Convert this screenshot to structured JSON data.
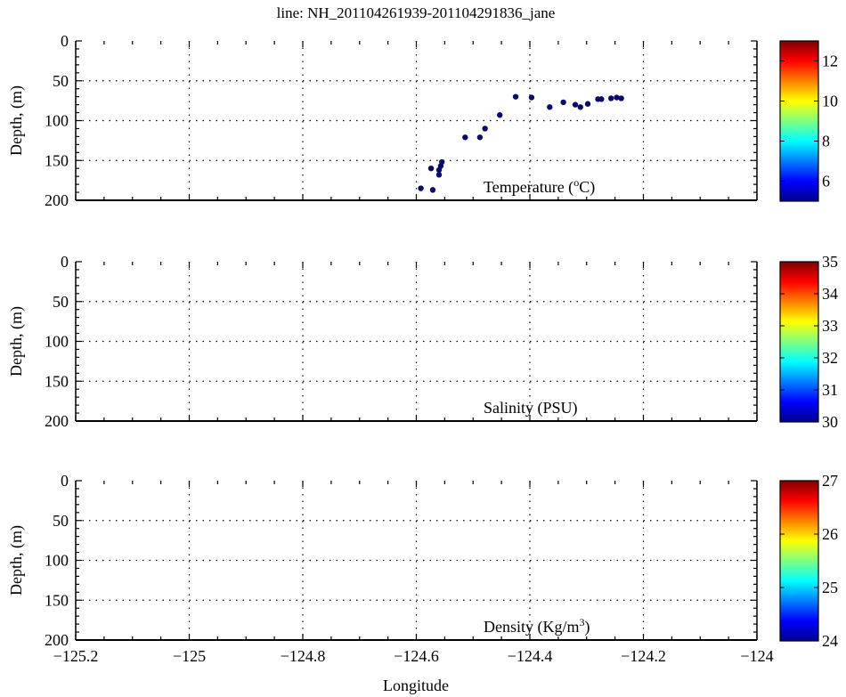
{
  "chart_data": {
    "type": "scatter",
    "title": "line: NH_201104261939-201104291836_jane",
    "xlabel": "Longitude",
    "xlim": [
      -125.2,
      -124
    ],
    "xticks": [
      -125.2,
      -125,
      -124.8,
      -124.6,
      -124.4,
      -124.2,
      -124
    ],
    "xtick_labels": [
      "−125.2",
      "−125",
      "−124.8",
      "−124.6",
      "−124.4",
      "−124.2",
      "−124"
    ],
    "grid": true,
    "panels": [
      {
        "name": "temperature",
        "ylabel": "Depth, (m)",
        "ylim": [
          0,
          200
        ],
        "yticks": [
          0,
          50,
          100,
          150,
          200
        ],
        "label_main": "Temperature (",
        "label_sup": "o",
        "label_end": "C)",
        "colorbar": {
          "range": [
            5,
            13
          ],
          "ticks": [
            6,
            8,
            10,
            12
          ]
        },
        "points": [
          [
            -124.592,
            185
          ],
          [
            -124.574,
            160
          ],
          [
            -124.571,
            187
          ],
          [
            -124.56,
            162
          ],
          [
            -124.56,
            168
          ],
          [
            -124.557,
            157
          ],
          [
            -124.555,
            152
          ],
          [
            -124.514,
            121
          ],
          [
            -124.488,
            121
          ],
          [
            -124.479,
            110
          ],
          [
            -124.453,
            93
          ],
          [
            -124.425,
            70
          ],
          [
            -124.397,
            71
          ],
          [
            -124.365,
            83
          ],
          [
            -124.341,
            77
          ],
          [
            -124.32,
            80
          ],
          [
            -124.311,
            83
          ],
          [
            -124.298,
            79
          ],
          [
            -124.28,
            73
          ],
          [
            -124.274,
            73
          ],
          [
            -124.257,
            72
          ],
          [
            -124.247,
            71
          ],
          [
            -124.239,
            72
          ]
        ],
        "point_color": "#0a0a6e"
      },
      {
        "name": "salinity",
        "ylabel": "Depth, (m)",
        "ylim": [
          0,
          200
        ],
        "yticks": [
          0,
          50,
          100,
          150,
          200
        ],
        "label_main": "Salinity (PSU)",
        "label_sup": "",
        "label_end": "",
        "colorbar": {
          "range": [
            30,
            35
          ],
          "ticks": [
            30,
            31,
            32,
            33,
            34,
            35
          ]
        },
        "points": []
      },
      {
        "name": "density",
        "ylabel": "Depth, (m)",
        "ylim": [
          0,
          200
        ],
        "yticks": [
          0,
          50,
          100,
          150,
          200
        ],
        "label_main": "Density (Kg/m",
        "label_sup": "3",
        "label_end": ")",
        "colorbar": {
          "range": [
            24,
            27
          ],
          "ticks": [
            24,
            25,
            26,
            27
          ]
        },
        "points": []
      }
    ]
  }
}
